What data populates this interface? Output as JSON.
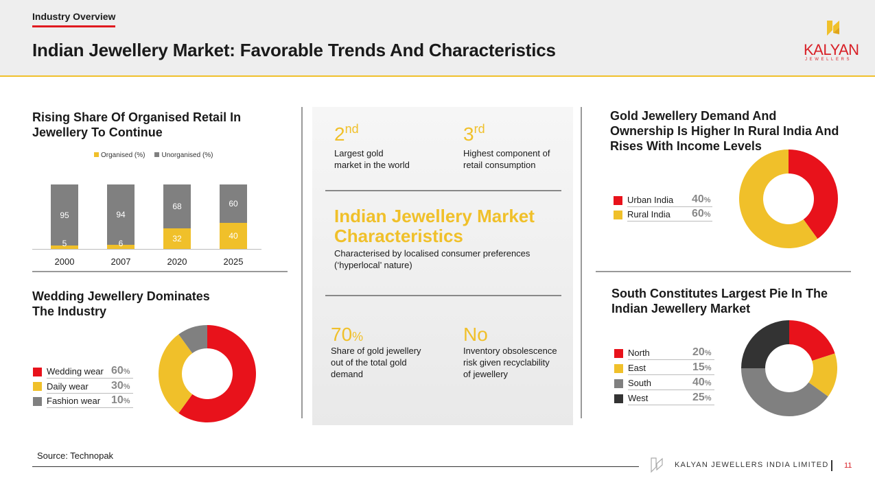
{
  "header": {
    "section_tag": "Industry Overview",
    "title": "Indian Jewellery Market: Favorable Trends And Characteristics",
    "logo_name": "KALYAN",
    "logo_sub": "JEWELLERS"
  },
  "retail": {
    "title_line1": "Rising Share Of Organised Retail In",
    "title_line2": "Jewellery To Continue",
    "legend_organised": "Organised (%)",
    "legend_unorganised": "Unorganised (%)"
  },
  "chart_data": [
    {
      "type": "bar",
      "title": "Rising Share Of Organised Retail In Jewellery To Continue",
      "categories": [
        "2000",
        "2007",
        "2020",
        "2025"
      ],
      "series": [
        {
          "name": "Organised (%)",
          "color": "#f0c02a",
          "values": [
            5,
            6,
            32,
            40
          ]
        },
        {
          "name": "Unorganised (%)",
          "color": "#808080",
          "values": [
            95,
            94,
            68,
            60
          ]
        }
      ],
      "stacked": true,
      "ylim": [
        0,
        100
      ]
    },
    {
      "type": "pie",
      "title": "Wedding Jewellery Dominates The Industry",
      "labels": [
        "Wedding wear",
        "Daily wear",
        "Fashion wear"
      ],
      "values": [
        60,
        30,
        10
      ],
      "colors": [
        "#e8121b",
        "#f0c02a",
        "#808080"
      ]
    },
    {
      "type": "pie",
      "title": "Gold Jewellery Demand And Ownership Is Higher In Rural India And Rises With Income Levels",
      "labels": [
        "Urban India",
        "Rural India"
      ],
      "values": [
        40,
        60
      ],
      "colors": [
        "#e8121b",
        "#f0c02a"
      ]
    },
    {
      "type": "pie",
      "title": "South Constitutes Largest Pie In The Indian Jewellery Market",
      "labels": [
        "North",
        "East",
        "South",
        "West"
      ],
      "values": [
        20,
        15,
        40,
        25
      ],
      "colors": [
        "#e8121b",
        "#f0c02a",
        "#808080",
        "#333333"
      ]
    }
  ],
  "wedding": {
    "title_line1": "Wedding Jewellery Dominates",
    "title_line2": "The Industry",
    "items": [
      {
        "label": "Wedding wear",
        "value": "60",
        "unit": "%"
      },
      {
        "label": "Daily wear",
        "value": "30",
        "unit": "%"
      },
      {
        "label": "Fashion wear",
        "value": "10",
        "unit": "%"
      }
    ]
  },
  "rural": {
    "title_line1": "Gold Jewellery Demand And",
    "title_line2": "Ownership Is Higher In Rural India And",
    "title_line3": "Rises With Income Levels",
    "items": [
      {
        "label": "Urban India",
        "value": "40",
        "unit": "%"
      },
      {
        "label": "Rural India",
        "value": "60",
        "unit": "%"
      }
    ]
  },
  "south": {
    "title_line1": "South Constitutes Largest Pie In The",
    "title_line2": "Indian Jewellery Market",
    "items": [
      {
        "label": "North",
        "value": "20",
        "unit": "%"
      },
      {
        "label": "East",
        "value": "15",
        "unit": "%"
      },
      {
        "label": "South",
        "value": "40",
        "unit": "%"
      },
      {
        "label": "West",
        "value": "25",
        "unit": "%"
      }
    ]
  },
  "center": {
    "stat1_num": "2",
    "stat1_sup": "nd",
    "stat1_line1": "Largest gold",
    "stat1_line2": "market in the world",
    "stat2_num": "3",
    "stat2_sup": "rd",
    "stat2_line1": "Highest component of",
    "stat2_line2": "retail consumption",
    "char_title_line1": "Indian Jewellery Market",
    "char_title_line2": "Characteristics",
    "char_text_line1": "Characterised by localised consumer preferences",
    "char_text_line2": "(‘hyperlocal’ nature)",
    "stat3_num": "70",
    "stat3_unit": "%",
    "stat3_line1": "Share of gold jewellery",
    "stat3_line2": "out of the total gold",
    "stat3_line3": "demand",
    "stat4_num": "No",
    "stat4_line1": "Inventory obsolescence",
    "stat4_line2": "risk given recyclability",
    "stat4_line3": "of jewellery"
  },
  "footer": {
    "source": "Source: Technopak",
    "company": "KALYAN JEWELLERS INDIA LIMITED",
    "page": "11"
  }
}
